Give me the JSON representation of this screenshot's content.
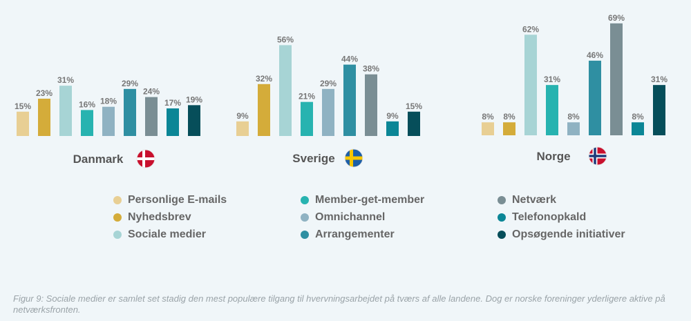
{
  "chart_data": {
    "type": "bar",
    "series_names": [
      "Personlige E-mails",
      "Nyhedsbrev",
      "Sociale medier",
      "Member-get-member",
      "Omnichannel",
      "Arrangementer",
      "Netværk",
      "Telefonopkald",
      "Opsøgende initiativer"
    ],
    "colors": [
      "#e8cf94",
      "#d4ac3a",
      "#a7d4d5",
      "#27b3b0",
      "#8fb2c2",
      "#2f8fa2",
      "#7a8e94",
      "#0b8696",
      "#064e5a"
    ],
    "groups": [
      {
        "country": "Danmark",
        "flag": "denmark-flag",
        "values": [
          15,
          23,
          31,
          16,
          18,
          29,
          24,
          17,
          19
        ],
        "labels": [
          "15%",
          "23%",
          "31%",
          "16%",
          "18%",
          "29%",
          "24%",
          "17%",
          "19%"
        ]
      },
      {
        "country": "Sverige",
        "flag": "sweden-flag",
        "values": [
          9,
          32,
          56,
          21,
          29,
          44,
          38,
          9,
          15
        ],
        "labels": [
          "9%",
          "32%",
          "56%",
          "21%",
          "29%",
          "44%",
          "38%",
          "9%",
          "15%"
        ]
      },
      {
        "country": "Norge",
        "flag": "norway-flag",
        "values": [
          8,
          8,
          62,
          31,
          8,
          46,
          69,
          8,
          31
        ],
        "labels": [
          "8%",
          "8%",
          "62%",
          "31%",
          "8%",
          "46%",
          "69%",
          "8%",
          "31%"
        ]
      }
    ]
  },
  "legend": [
    {
      "label": "Personlige E-mails",
      "color": "#e8cf94"
    },
    {
      "label": "Nyhedsbrev",
      "color": "#d4ac3a"
    },
    {
      "label": "Sociale medier",
      "color": "#a7d4d5"
    },
    {
      "label": "Member-get-member",
      "color": "#27b3b0"
    },
    {
      "label": "Omnichannel",
      "color": "#8fb2c2"
    },
    {
      "label": "Arrangementer",
      "color": "#2f8fa2"
    },
    {
      "label": "Netværk",
      "color": "#7a8e94"
    },
    {
      "label": "Telefonopkald",
      "color": "#0b8696"
    },
    {
      "label": "Opsøgende initiativer",
      "color": "#064e5a"
    }
  ],
  "caption": "Figur 9: Sociale medier er samlet set stadig den mest populære tilgang til hvervningsarbejdet på tværs af alle landene. Dog er norske foreninger yderligere aktive på netværksfronten."
}
